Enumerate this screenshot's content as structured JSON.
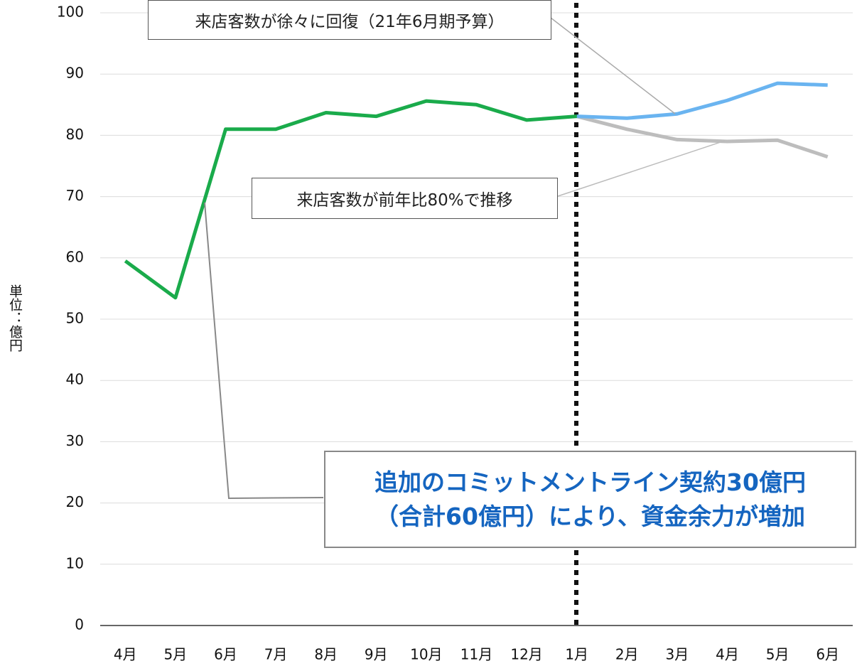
{
  "chart_data": {
    "type": "line",
    "y_label": "単位：億円",
    "categories": [
      "4月",
      "5月",
      "6月",
      "7月",
      "8月",
      "9月",
      "10月",
      "11月",
      "12月",
      "1月",
      "2月",
      "3月",
      "4月",
      "5月",
      "6月"
    ],
    "series": [
      {
        "color": "#1aab4b",
        "values": [
          59.5,
          53.5,
          81,
          81,
          83.7,
          83.1,
          85.6,
          85,
          82.5,
          83.1,
          null,
          null,
          null,
          null,
          null
        ]
      },
      {
        "color": "#6ab4f0",
        "values": [
          null,
          null,
          null,
          null,
          null,
          null,
          null,
          null,
          null,
          83.1,
          82.8,
          83.5,
          85.7,
          88.5,
          88.2
        ]
      },
      {
        "color": "#bdbdbd",
        "values": [
          null,
          null,
          null,
          null,
          null,
          null,
          null,
          null,
          null,
          83.1,
          81,
          79.3,
          79,
          79.2,
          76.5
        ]
      }
    ],
    "ylim": [
      0,
      100
    ],
    "yticks": [
      0,
      10,
      20,
      30,
      40,
      50,
      60,
      70,
      80,
      90,
      100
    ],
    "grid": true,
    "annotations": [
      "来店客数が徐々に回復（21年6月期予算）",
      "来店客数が前年比80%で推移",
      [
        "追加のコミットメントライン契約30億円",
        "（合計60億円）により、資金余力が増加"
      ]
    ]
  }
}
